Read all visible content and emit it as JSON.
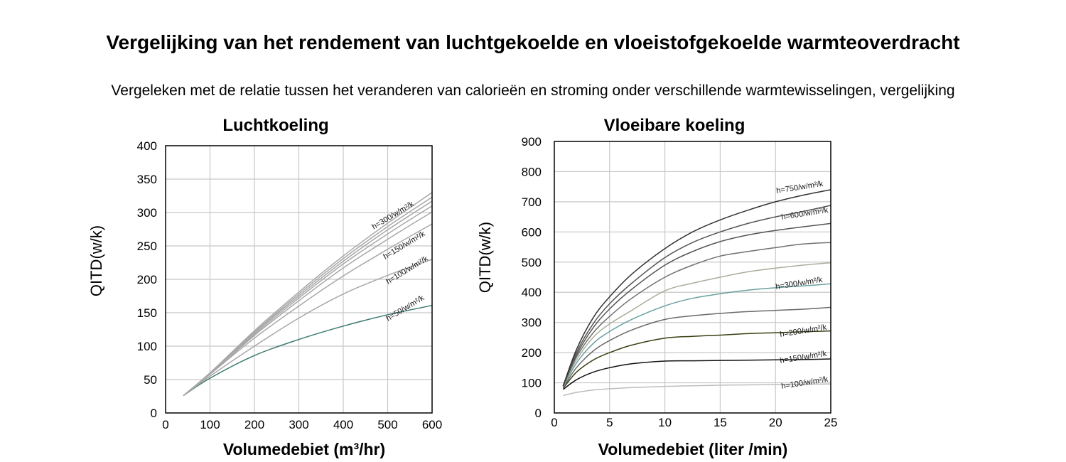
{
  "page": {
    "title": "Vergelijking van het rendement van luchtgekoelde en vloeistofgekoelde warmteoverdracht",
    "subtitle": "Vergeleken met de relatie tussen het veranderen van calorieën en stroming onder verschillende warmtewisselingen, vergelijking"
  },
  "chart_data": [
    {
      "type": "line",
      "title": "Luchtkoeling",
      "xlabel": "Volumedebiet (m³/hr)",
      "ylabel": "QITD(w/k)",
      "xlim": [
        0,
        600
      ],
      "ylim": [
        0,
        400
      ],
      "xticks": [
        0,
        100,
        200,
        300,
        400,
        500,
        600
      ],
      "yticks": [
        0,
        50,
        100,
        150,
        200,
        250,
        300,
        350,
        400
      ],
      "grid": true,
      "x": [
        40,
        100,
        200,
        300,
        400,
        500,
        600
      ],
      "series": [
        {
          "name": "h=50/w/m²/k",
          "label": "h=50/w/m²/k",
          "color": "#3d7a70",
          "values": [
            26,
            52,
            86,
            110,
            130,
            147,
            161
          ]
        },
        {
          "name": "h=100/w/m²/k",
          "label": "h=100/w/m²/k",
          "color": "#a8a8a8",
          "values": [
            26,
            55,
            100,
            142,
            178,
            206,
            230
          ]
        },
        {
          "name": "h=150/w/m²/k",
          "label": "h=150/w/m²/k",
          "color": "#a8a8a8",
          "values": [
            26,
            58,
            112,
            160,
            205,
            245,
            283
          ]
        },
        {
          "name": "",
          "label": "",
          "color": "#a8a8a8",
          "values": [
            26,
            58,
            116,
            168,
            217,
            260,
            301
          ]
        },
        {
          "name": "",
          "label": "",
          "color": "#a8a8a8",
          "values": [
            26,
            59,
            118,
            172,
            223,
            268,
            310
          ]
        },
        {
          "name": "",
          "label": "",
          "color": "#a8a8a8",
          "values": [
            26,
            59,
            120,
            175,
            227,
            274,
            317
          ]
        },
        {
          "name": "",
          "label": "",
          "color": "#a8a8a8",
          "values": [
            26,
            60,
            121,
            178,
            231,
            279,
            323
          ]
        },
        {
          "name": "h=300/w/m²/k",
          "label": "h=300/w/m²/k",
          "color": "#a8a8a8",
          "values": [
            26,
            60,
            123,
            181,
            235,
            284,
            330
          ]
        }
      ]
    },
    {
      "type": "line",
      "title": "Vloeibare koeling",
      "xlabel": "Volumedebiet (liter /min)",
      "ylabel": "QITD(w/k)",
      "xlim": [
        0,
        25
      ],
      "ylim": [
        0,
        900
      ],
      "xticks": [
        0,
        5,
        10,
        15,
        20,
        25
      ],
      "yticks": [
        0,
        100,
        200,
        300,
        400,
        500,
        600,
        700,
        800,
        900
      ],
      "grid": true,
      "x": [
        0.8,
        2,
        3.5,
        5,
        7,
        10,
        12.5,
        15,
        17.5,
        20,
        22.5,
        25
      ],
      "series": [
        {
          "name": "h=100/w/m²/k",
          "label": "h=100/w/m²/k",
          "color": "#bdbdbd",
          "values": [
            58,
            68,
            76,
            80,
            84,
            88,
            90,
            92,
            93,
            94,
            95,
            96
          ]
        },
        {
          "name": "h=150/w/m²/k",
          "label": "h=150/w/m²/k",
          "color": "#111111",
          "values": [
            78,
            110,
            135,
            150,
            163,
            172,
            173,
            174,
            175,
            176,
            177,
            179
          ]
        },
        {
          "name": "h=200/w/m²/k",
          "label": "h=200/w/m²/k",
          "color": "#3a3f12",
          "values": [
            82,
            135,
            175,
            200,
            225,
            248,
            254,
            258,
            263,
            266,
            269,
            272
          ]
        },
        {
          "name": "",
          "label": "",
          "color": "#6a6a6a",
          "values": [
            84,
            150,
            205,
            240,
            275,
            310,
            322,
            330,
            336,
            340,
            344,
            350
          ]
        },
        {
          "name": "h=300/w/m²/k",
          "label": "h=300/w/m²/k",
          "color": "#6aa0a0",
          "values": [
            86,
            165,
            230,
            270,
            310,
            355,
            380,
            395,
            407,
            415,
            421,
            428
          ]
        },
        {
          "name": "",
          "label": "",
          "color": "#a7b09a",
          "values": [
            87,
            175,
            250,
            295,
            340,
            405,
            430,
            450,
            468,
            480,
            490,
            498
          ]
        },
        {
          "name": "",
          "label": "",
          "color": "#707070",
          "values": [
            88,
            185,
            265,
            320,
            380,
            450,
            490,
            520,
            535,
            548,
            560,
            565
          ]
        },
        {
          "name": "h=600/w/m²/k",
          "label": "h=600/w/m²/k",
          "color": "#555555",
          "values": [
            89,
            192,
            282,
            345,
            410,
            490,
            535,
            568,
            590,
            605,
            617,
            628
          ]
        },
        {
          "name": "",
          "label": "",
          "color": "#555555",
          "values": [
            90,
            200,
            295,
            362,
            430,
            515,
            565,
            600,
            628,
            650,
            668,
            688
          ]
        },
        {
          "name": "h=750/w/m²/k",
          "label": "h=750/w/m²/k",
          "color": "#333333",
          "values": [
            90,
            210,
            315,
            385,
            460,
            545,
            600,
            640,
            672,
            700,
            722,
            740
          ]
        }
      ]
    }
  ]
}
